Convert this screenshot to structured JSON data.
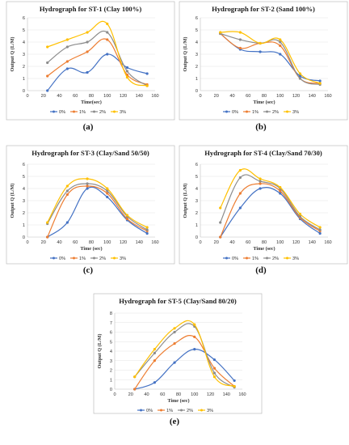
{
  "chart_data": [
    {
      "type": "line",
      "caption": "(a)",
      "title": "Hydrograph for ST-1 (Clay 100%)",
      "xlabel": "Time(sec)",
      "ylabel": "Output Q (L/M)",
      "xlim": [
        0,
        160
      ],
      "ylim": [
        0,
        6
      ],
      "xticks": [
        0,
        20,
        40,
        60,
        80,
        100,
        120,
        140,
        160
      ],
      "yticks": [
        0,
        1,
        2,
        3,
        4,
        5,
        6
      ],
      "legend": "bottom",
      "grid": true,
      "x": [
        25,
        50,
        75,
        100,
        125,
        150
      ],
      "series": [
        {
          "name": "0%",
          "color": "#4472c4",
          "values": [
            0.0,
            1.8,
            1.5,
            3.0,
            1.9,
            1.4
          ]
        },
        {
          "name": "1%",
          "color": "#ed7d31",
          "values": [
            1.2,
            2.4,
            3.2,
            4.2,
            1.3,
            0.5
          ]
        },
        {
          "name": "2%",
          "color": "#8c8c8c",
          "values": [
            2.3,
            3.6,
            4.0,
            4.8,
            1.6,
            0.4
          ]
        },
        {
          "name": "3%",
          "color": "#ffc000",
          "values": [
            3.6,
            4.2,
            4.8,
            5.5,
            1.1,
            0.4
          ]
        }
      ]
    },
    {
      "type": "line",
      "caption": "(b)",
      "title": "Hydrograph for ST-2 (Sand 100%)",
      "xlabel": "Time (sec)",
      "ylabel": "Output Q (L/M)",
      "xlim": [
        0,
        160
      ],
      "ylim": [
        0,
        6
      ],
      "xticks": [
        0,
        20,
        40,
        60,
        80,
        100,
        120,
        140,
        160
      ],
      "yticks": [
        0,
        1,
        2,
        3,
        4,
        5,
        6
      ],
      "legend": "bottom",
      "grid": true,
      "x": [
        25,
        50,
        75,
        100,
        125,
        150
      ],
      "series": [
        {
          "name": "0%",
          "color": "#4472c4",
          "values": [
            4.7,
            3.4,
            3.2,
            3.0,
            1.2,
            0.8
          ]
        },
        {
          "name": "1%",
          "color": "#ed7d31",
          "values": [
            4.7,
            3.5,
            3.9,
            3.7,
            1.0,
            0.6
          ]
        },
        {
          "name": "2%",
          "color": "#8c8c8c",
          "values": [
            4.7,
            4.2,
            3.9,
            4.0,
            1.0,
            0.5
          ]
        },
        {
          "name": "3%",
          "color": "#ffc000",
          "values": [
            4.8,
            4.8,
            3.9,
            4.2,
            1.4,
            0.6
          ]
        }
      ]
    },
    {
      "type": "line",
      "caption": "(c)",
      "title": "Hydrograph for ST-3 (Clay/Sand 50/50)",
      "xlabel": "Time (sec)",
      "ylabel": "Output Q (L/M)",
      "xlim": [
        0,
        160
      ],
      "ylim": [
        0,
        6
      ],
      "xticks": [
        0,
        20,
        40,
        60,
        80,
        100,
        120,
        140,
        160
      ],
      "yticks": [
        0,
        1,
        2,
        3,
        4,
        5,
        6
      ],
      "legend": "bottom",
      "grid": true,
      "x": [
        25,
        50,
        75,
        100,
        125,
        150
      ],
      "series": [
        {
          "name": "0%",
          "color": "#4472c4",
          "values": [
            0.0,
            1.2,
            4.0,
            3.3,
            1.4,
            0.3
          ]
        },
        {
          "name": "1%",
          "color": "#ed7d31",
          "values": [
            0.0,
            3.5,
            4.2,
            3.6,
            1.5,
            0.5
          ]
        },
        {
          "name": "2%",
          "color": "#8c8c8c",
          "values": [
            1.1,
            3.8,
            4.4,
            3.8,
            1.7,
            0.6
          ]
        },
        {
          "name": "3%",
          "color": "#ffc000",
          "values": [
            1.2,
            4.2,
            4.8,
            4.0,
            1.8,
            0.8
          ]
        }
      ]
    },
    {
      "type": "line",
      "caption": "(d)",
      "title": "Hydrograph for ST-4 (Clay/Sand 70/30)",
      "xlabel": "Time (sec)",
      "ylabel": "Output Q (L/M)",
      "xlim": [
        0,
        160
      ],
      "ylim": [
        0,
        6
      ],
      "xticks": [
        0,
        20,
        40,
        60,
        80,
        100,
        120,
        140,
        160
      ],
      "yticks": [
        0,
        1,
        2,
        3,
        4,
        5,
        6
      ],
      "legend": "bottom",
      "grid": true,
      "x": [
        25,
        50,
        75,
        100,
        125,
        150
      ],
      "series": [
        {
          "name": "0%",
          "color": "#4472c4",
          "values": [
            0.0,
            2.4,
            4.0,
            3.6,
            1.5,
            0.3
          ]
        },
        {
          "name": "1%",
          "color": "#ed7d31",
          "values": [
            0.0,
            3.6,
            4.4,
            3.8,
            1.6,
            0.5
          ]
        },
        {
          "name": "2%",
          "color": "#8c8c8c",
          "values": [
            1.2,
            4.9,
            4.6,
            4.0,
            1.7,
            0.6
          ]
        },
        {
          "name": "3%",
          "color": "#ffc000",
          "values": [
            2.4,
            5.5,
            4.8,
            4.1,
            1.9,
            0.8
          ]
        }
      ]
    },
    {
      "type": "line",
      "caption": "(e)",
      "title": "Hydrograph for ST-5 (Clay/Sand 80/20)",
      "xlabel": "Time (sec)",
      "ylabel": "Output Q (L/M)",
      "xlim": [
        0,
        160
      ],
      "ylim": [
        0,
        8
      ],
      "xticks": [
        0,
        20,
        40,
        60,
        80,
        100,
        120,
        140,
        160
      ],
      "yticks": [
        0,
        1,
        2,
        3,
        4,
        5,
        6,
        7,
        8
      ],
      "legend": "bottom",
      "grid": true,
      "x": [
        25,
        50,
        75,
        100,
        125,
        150
      ],
      "series": [
        {
          "name": "0%",
          "color": "#4472c4",
          "values": [
            0.0,
            0.7,
            2.8,
            4.2,
            3.1,
            0.9
          ]
        },
        {
          "name": "1%",
          "color": "#ed7d31",
          "values": [
            0.0,
            3.0,
            4.8,
            5.5,
            2.2,
            0.3
          ]
        },
        {
          "name": "2%",
          "color": "#8c8c8c",
          "values": [
            1.3,
            3.8,
            6.0,
            6.6,
            1.7,
            0.2
          ]
        },
        {
          "name": "3%",
          "color": "#ffc000",
          "values": [
            1.3,
            4.2,
            6.4,
            6.8,
            1.3,
            0.3
          ]
        }
      ]
    }
  ]
}
